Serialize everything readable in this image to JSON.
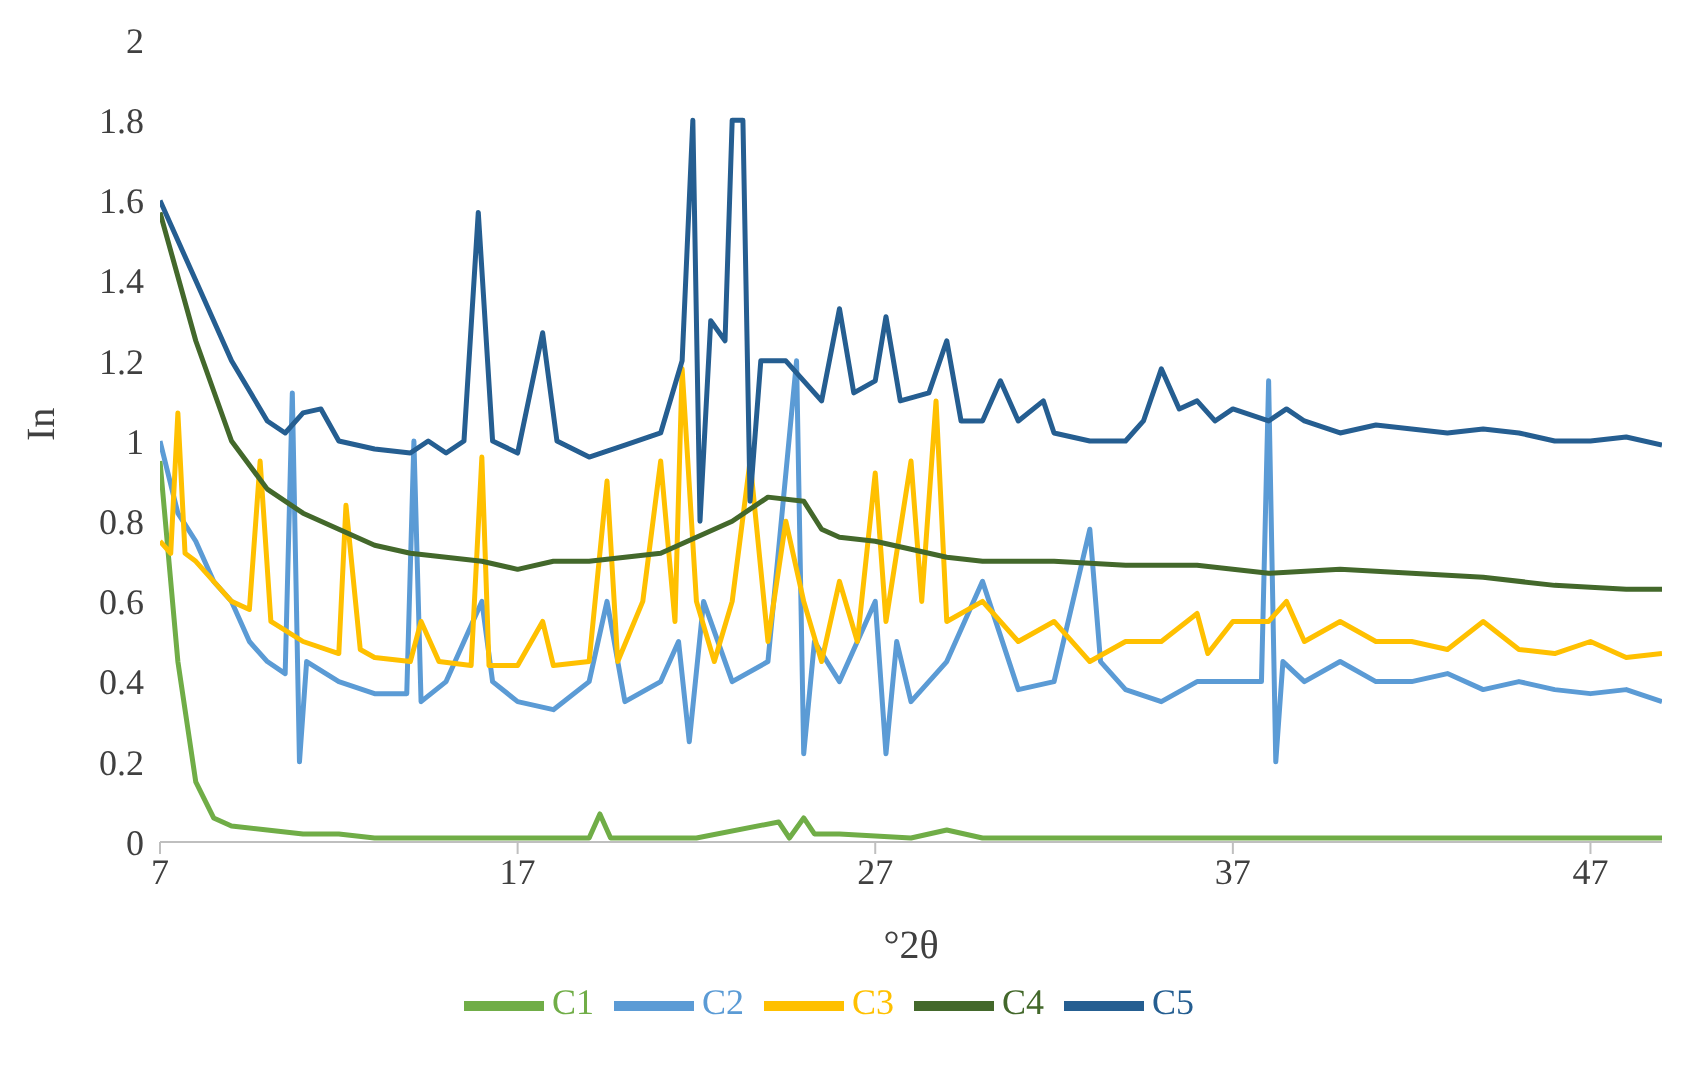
{
  "chart_data": {
    "type": "line",
    "xlabel": "°2θ",
    "ylabel": "In",
    "xlim": [
      7,
      49
    ],
    "xticks": [
      7,
      17,
      27,
      37,
      47
    ],
    "ylim": [
      0,
      2
    ],
    "yticks": [
      0,
      0.2,
      0.4,
      0.6,
      0.8,
      1,
      1.2,
      1.4,
      1.6,
      1.8,
      2
    ],
    "grid": false,
    "legend": "bottom",
    "marker": "none",
    "line_style": "solid",
    "series": [
      {
        "name": "C1",
        "color": "#70ad47",
        "x": [
          7,
          7.5,
          8,
          8.5,
          9,
          10,
          11,
          12,
          13,
          15,
          18,
          19,
          19.3,
          19.6,
          22,
          24.3,
          24.6,
          25,
          25.3,
          26,
          28,
          29,
          30,
          35,
          40,
          45,
          49
        ],
        "values": [
          0.95,
          0.45,
          0.15,
          0.06,
          0.04,
          0.03,
          0.02,
          0.02,
          0.01,
          0.01,
          0.01,
          0.01,
          0.07,
          0.01,
          0.01,
          0.05,
          0.01,
          0.06,
          0.02,
          0.02,
          0.01,
          0.03,
          0.01,
          0.01,
          0.01,
          0.01,
          0.01
        ]
      },
      {
        "name": "C2",
        "color": "#5b9bd5",
        "x": [
          7,
          7.5,
          8,
          8.5,
          9,
          9.5,
          10,
          10.5,
          10.7,
          10.9,
          11.1,
          12,
          13,
          13.9,
          14.1,
          14.3,
          15,
          15.5,
          16,
          16.3,
          17,
          18,
          19,
          19.5,
          20,
          21,
          21.5,
          21.8,
          22.2,
          23,
          24,
          24.8,
          25,
          25.3,
          26,
          27,
          27.3,
          27.6,
          28,
          29,
          30,
          31,
          32,
          33,
          33.3,
          34,
          35,
          36,
          37,
          37.8,
          38,
          38.2,
          38.4,
          39,
          40,
          41,
          42,
          43,
          44,
          45,
          46,
          47,
          48,
          49
        ],
        "values": [
          1.0,
          0.82,
          0.75,
          0.65,
          0.6,
          0.5,
          0.45,
          0.42,
          1.12,
          0.2,
          0.45,
          0.4,
          0.37,
          0.37,
          1.0,
          0.35,
          0.4,
          0.5,
          0.6,
          0.4,
          0.35,
          0.33,
          0.4,
          0.6,
          0.35,
          0.4,
          0.5,
          0.25,
          0.6,
          0.4,
          0.45,
          1.2,
          0.22,
          0.5,
          0.4,
          0.6,
          0.22,
          0.5,
          0.35,
          0.45,
          0.65,
          0.38,
          0.4,
          0.78,
          0.45,
          0.38,
          0.35,
          0.4,
          0.4,
          0.4,
          1.15,
          0.2,
          0.45,
          0.4,
          0.45,
          0.4,
          0.4,
          0.42,
          0.38,
          0.4,
          0.38,
          0.37,
          0.38,
          0.35
        ]
      },
      {
        "name": "C3",
        "color": "#ffc000",
        "x": [
          7,
          7.3,
          7.5,
          7.7,
          8,
          8.5,
          9,
          9.5,
          9.8,
          10.1,
          11,
          12,
          12.2,
          12.6,
          13,
          14,
          14.3,
          14.8,
          15.7,
          16,
          16.2,
          17,
          17.7,
          18,
          19,
          19.5,
          19.8,
          20.5,
          21,
          21.4,
          21.6,
          22,
          22.5,
          23,
          23.5,
          24,
          24.5,
          25,
          25.5,
          26,
          26.5,
          27,
          27.3,
          28,
          28.3,
          28.7,
          29,
          30,
          31,
          32,
          33,
          34,
          35,
          36,
          36.3,
          37,
          38,
          38.5,
          39,
          40,
          41,
          42,
          43,
          44,
          45,
          46,
          47,
          48,
          49
        ],
        "values": [
          0.75,
          0.72,
          1.07,
          0.72,
          0.7,
          0.65,
          0.6,
          0.58,
          0.95,
          0.55,
          0.5,
          0.47,
          0.84,
          0.48,
          0.46,
          0.45,
          0.55,
          0.45,
          0.44,
          0.96,
          0.44,
          0.44,
          0.55,
          0.44,
          0.45,
          0.9,
          0.45,
          0.6,
          0.95,
          0.55,
          1.18,
          0.6,
          0.45,
          0.6,
          0.95,
          0.5,
          0.8,
          0.6,
          0.45,
          0.65,
          0.5,
          0.92,
          0.55,
          0.95,
          0.6,
          1.1,
          0.55,
          0.6,
          0.5,
          0.55,
          0.45,
          0.5,
          0.5,
          0.57,
          0.47,
          0.55,
          0.55,
          0.6,
          0.5,
          0.55,
          0.5,
          0.5,
          0.48,
          0.55,
          0.48,
          0.47,
          0.5,
          0.46,
          0.47
        ]
      },
      {
        "name": "C4",
        "color": "#43682b",
        "x": [
          7,
          8,
          9,
          10,
          11,
          12,
          13,
          14,
          15,
          16,
          17,
          18,
          19,
          20,
          21,
          22,
          23,
          24,
          25,
          25.5,
          26,
          27,
          28,
          29,
          30,
          32,
          34,
          36,
          38,
          40,
          42,
          44,
          46,
          48,
          49
        ],
        "values": [
          1.57,
          1.25,
          1.0,
          0.88,
          0.82,
          0.78,
          0.74,
          0.72,
          0.71,
          0.7,
          0.68,
          0.7,
          0.7,
          0.71,
          0.72,
          0.76,
          0.8,
          0.86,
          0.85,
          0.78,
          0.76,
          0.75,
          0.73,
          0.71,
          0.7,
          0.7,
          0.69,
          0.69,
          0.67,
          0.68,
          0.67,
          0.66,
          0.64,
          0.63,
          0.63
        ]
      },
      {
        "name": "C5",
        "color": "#255e91",
        "x": [
          7,
          8,
          9,
          10,
          10.5,
          11,
          11.5,
          12,
          13,
          14,
          14.5,
          15,
          15.5,
          15.9,
          16.3,
          17,
          17.7,
          18.1,
          19,
          20,
          21,
          21.6,
          21.9,
          22.1,
          22.4,
          22.8,
          23,
          23.3,
          23.5,
          23.8,
          24.5,
          25,
          25.5,
          26,
          26.4,
          27,
          27.3,
          27.7,
          28.5,
          29,
          29.4,
          30,
          30.5,
          31,
          31.7,
          32,
          33,
          34,
          34.5,
          35,
          35.5,
          36,
          36.5,
          37,
          38,
          38.5,
          39,
          40,
          41,
          42,
          43,
          44,
          45,
          46,
          47,
          48,
          49
        ],
        "values": [
          1.6,
          1.4,
          1.2,
          1.05,
          1.02,
          1.07,
          1.08,
          1.0,
          0.98,
          0.97,
          1.0,
          0.97,
          1.0,
          1.57,
          1.0,
          0.97,
          1.27,
          1.0,
          0.96,
          0.99,
          1.02,
          1.2,
          1.8,
          0.8,
          1.3,
          1.25,
          1.8,
          1.8,
          0.85,
          1.2,
          1.2,
          1.15,
          1.1,
          1.33,
          1.12,
          1.15,
          1.31,
          1.1,
          1.12,
          1.25,
          1.05,
          1.05,
          1.15,
          1.05,
          1.1,
          1.02,
          1.0,
          1.0,
          1.05,
          1.18,
          1.08,
          1.1,
          1.05,
          1.08,
          1.05,
          1.08,
          1.05,
          1.02,
          1.04,
          1.03,
          1.02,
          1.03,
          1.02,
          1.0,
          1.0,
          1.01,
          0.99
        ]
      }
    ]
  }
}
